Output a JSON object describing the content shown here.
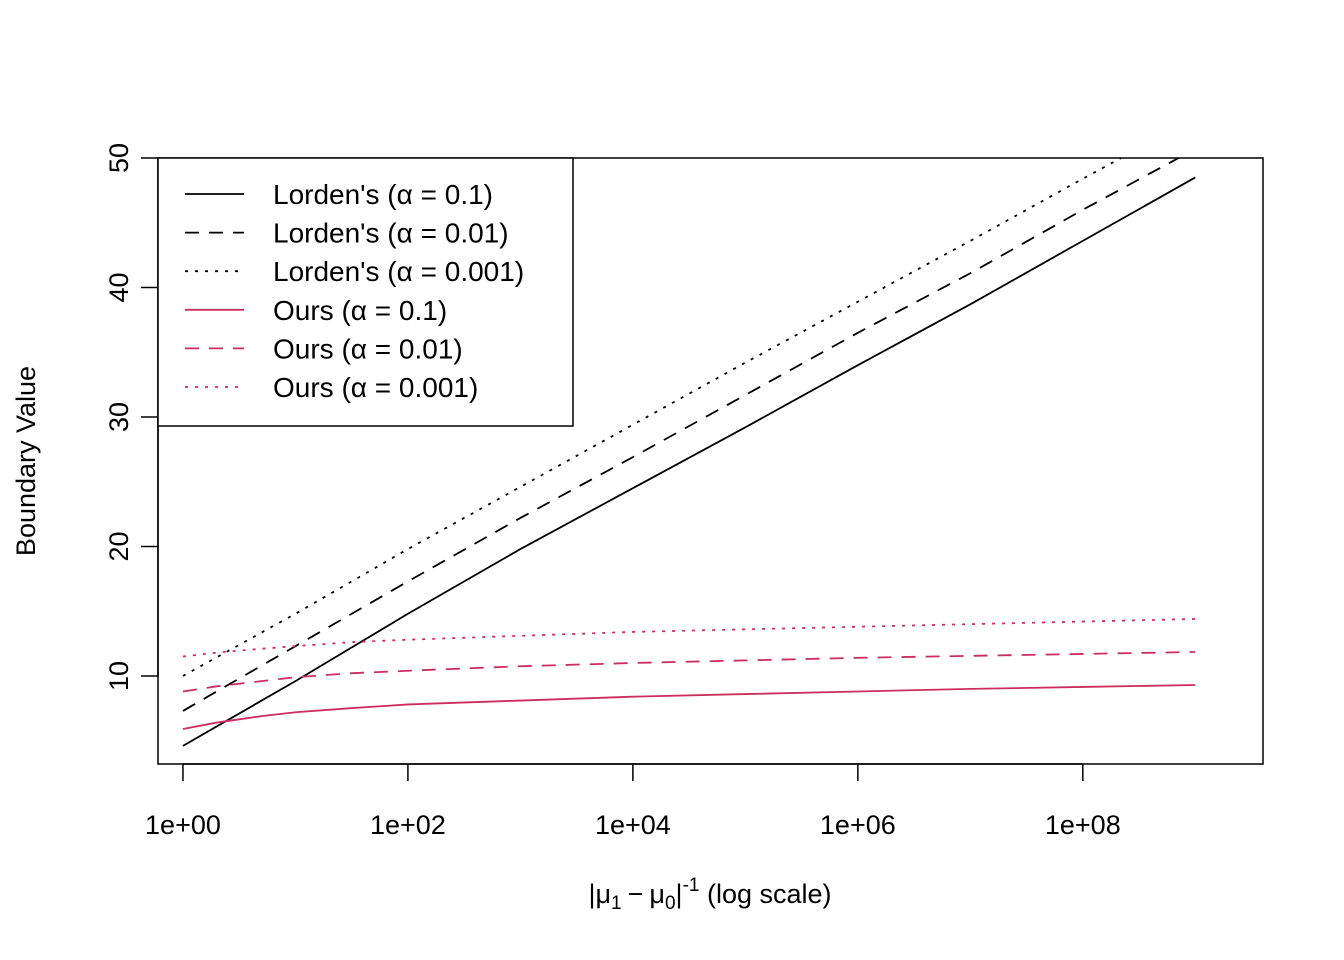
{
  "chart_data": {
    "type": "line",
    "title": "",
    "xlabel": "|μ1 − μ0|^-1 (log scale)",
    "xlabel_parts": {
      "bar_left": "|",
      "mu": "μ",
      "sub1": "1",
      "minus": "−",
      "sub0": "0",
      "bar_right": "|",
      "exponent": "-1",
      "suffix": " (log scale)"
    },
    "ylabel": "Boundary Value",
    "x_scale": "log10",
    "xlim": [
      0.6,
      4000000000
    ],
    "ylim": [
      3.2,
      50
    ],
    "x_ticks": [
      1,
      100,
      10000,
      1000000,
      100000000
    ],
    "x_tick_labels": [
      "1e+00",
      "1e+02",
      "1e+04",
      "1e+06",
      "1e+08"
    ],
    "y_ticks": [
      10,
      20,
      30,
      40,
      50
    ],
    "y_tick_labels": [
      "10",
      "20",
      "30",
      "40",
      "50"
    ],
    "grid": false,
    "legend_position": "top-left",
    "series": [
      {
        "name": "Lorden's (α = 0.1)",
        "name_prefix": "Lorden's (",
        "alpha_value": "0.1",
        "color": "#000000",
        "dash": "solid",
        "x": [
          1,
          10,
          100,
          1000,
          10000,
          100000,
          1000000,
          10000000,
          100000000,
          1000000000
        ],
        "y": [
          4.6,
          9.6,
          14.8,
          19.8,
          24.5,
          29.2,
          34.0,
          38.7,
          43.6,
          48.5
        ]
      },
      {
        "name": "Lorden's (α = 0.01)",
        "name_prefix": "Lorden's (",
        "alpha_value": "0.01",
        "color": "#000000",
        "dash": "dashed",
        "x": [
          1,
          10,
          100,
          1000,
          10000,
          100000,
          1000000,
          10000000,
          100000000,
          1000000000
        ],
        "y": [
          7.3,
          12.3,
          17.3,
          22.2,
          26.9,
          31.7,
          36.5,
          41.1,
          46.0,
          50.7
        ]
      },
      {
        "name": "Lorden's (α = 0.001)",
        "name_prefix": "Lorden's (",
        "alpha_value": "0.001",
        "color": "#000000",
        "dash": "dotted",
        "x": [
          1,
          10,
          100,
          1000,
          10000,
          100000,
          1000000,
          10000000,
          100000000,
          1000000000
        ],
        "y": [
          10.0,
          14.8,
          19.8,
          24.6,
          29.4,
          34.2,
          38.9,
          43.6,
          48.4,
          53.1
        ]
      },
      {
        "name": "Ours (α = 0.1)",
        "name_prefix": "Ours (",
        "alpha_value": "0.1",
        "color": "#cd2d5e",
        "dash": "solid",
        "x": [
          1,
          2,
          5,
          10,
          30,
          100,
          1000,
          10000,
          100000,
          1000000,
          10000000,
          100000000,
          1000000000
        ],
        "y": [
          5.9,
          6.4,
          6.9,
          7.2,
          7.5,
          7.8,
          8.1,
          8.4,
          8.6,
          8.8,
          9.0,
          9.15,
          9.3
        ]
      },
      {
        "name": "Ours (α = 0.01)",
        "name_prefix": "Ours (",
        "alpha_value": "0.01",
        "color": "#cd2d5e",
        "dash": "dashed",
        "x": [
          1,
          2,
          5,
          10,
          30,
          100,
          1000,
          10000,
          100000,
          1000000,
          10000000,
          100000000,
          1000000000
        ],
        "y": [
          8.8,
          9.2,
          9.6,
          9.9,
          10.2,
          10.4,
          10.75,
          11.0,
          11.2,
          11.4,
          11.55,
          11.7,
          11.85
        ]
      },
      {
        "name": "Ours (α = 0.001)",
        "name_prefix": "Ours (",
        "alpha_value": "0.001",
        "color": "#cd2d5e",
        "dash": "dotted",
        "x": [
          1,
          2,
          5,
          10,
          30,
          100,
          1000,
          10000,
          100000,
          1000000,
          10000000,
          100000000,
          1000000000
        ],
        "y": [
          11.5,
          11.8,
          12.1,
          12.3,
          12.6,
          12.8,
          13.1,
          13.4,
          13.6,
          13.8,
          14.0,
          14.2,
          14.4
        ]
      }
    ]
  }
}
